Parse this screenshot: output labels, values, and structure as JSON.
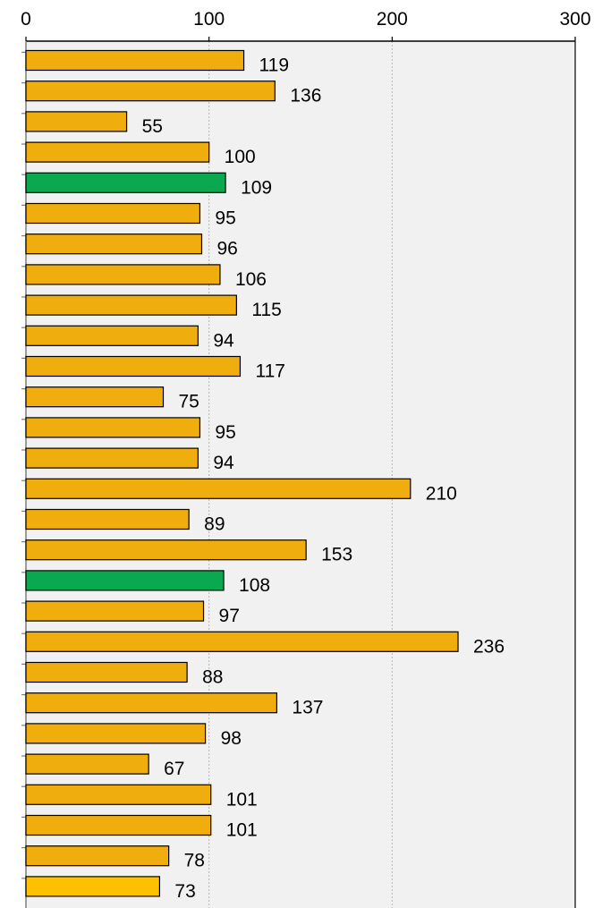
{
  "chart_data": {
    "type": "bar",
    "orientation": "horizontal",
    "x_axis_position": "top",
    "xlim": [
      0,
      300
    ],
    "x_ticks": [
      0,
      100,
      200,
      300
    ],
    "x_tick_labels": [
      "0",
      "100",
      "200",
      "300"
    ],
    "grid": true,
    "legend": "none",
    "values": [
      119,
      136,
      55,
      100,
      109,
      95,
      96,
      106,
      115,
      94,
      117,
      75,
      95,
      94,
      210,
      89,
      153,
      108,
      97,
      236,
      88,
      137,
      98,
      67,
      101,
      101,
      78,
      73
    ],
    "value_labels": [
      "119",
      "136",
      "55",
      "100",
      "109",
      "95",
      "96",
      "106",
      "115",
      "94",
      "117",
      "75",
      "95",
      "94",
      "210",
      "89",
      "153",
      "108",
      "97",
      "236",
      "88",
      "137",
      "98",
      "67",
      "101",
      "101",
      "78",
      "73"
    ],
    "highlighted_indices": [
      4,
      17
    ],
    "last_bar_index": 27
  },
  "colors": {
    "bar": "#f0ad0e",
    "highlight": "#0aa84f",
    "last_bar": "#ffc000",
    "bar_stroke": "#000000",
    "plot_background": "#f1f1f1",
    "grid": "#b4b4b4",
    "axis": "#7f7f7f"
  }
}
